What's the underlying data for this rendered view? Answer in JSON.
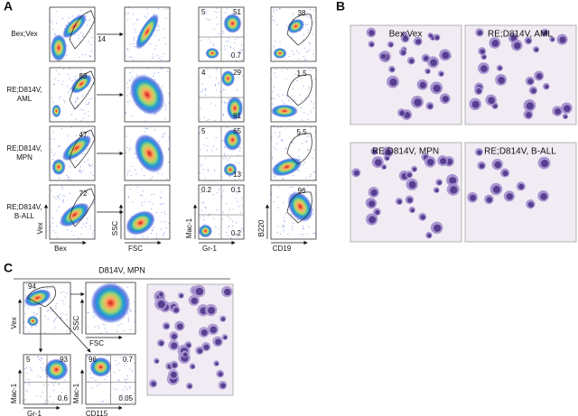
{
  "panel_a": {
    "label": "A",
    "rows": [
      {
        "name_lines": [
          "Bex;Vex"
        ],
        "gate": "14",
        "quadrants": [
          "5",
          "51",
          "0.7"
        ],
        "b_gate": "38"
      },
      {
        "name_lines": [
          "RE;D814V,",
          "AML"
        ],
        "gate": "88",
        "quadrants": [
          "4",
          "29",
          "61"
        ],
        "b_gate": "1.5"
      },
      {
        "name_lines": [
          "RE;D814V,",
          "MPN"
        ],
        "gate": "47",
        "quadrants": [
          "5",
          "65",
          "13"
        ],
        "b_gate": "5.5"
      },
      {
        "name_lines": [
          "RE;D814V,",
          "B-ALL"
        ],
        "gate": "72",
        "quadrants": [
          "0.2",
          "0.1",
          "0.2"
        ],
        "b_gate": "96"
      }
    ],
    "axes": [
      [
        "Vex",
        "Bex"
      ],
      [
        "SSC",
        "FSC"
      ],
      [
        "Mac-1",
        "Gr-1"
      ],
      [
        "B220",
        "CD19"
      ]
    ]
  },
  "panel_b": {
    "label": "B",
    "images": [
      "Bex;Vex",
      "RE;D814V, AML",
      "RE;D814V, MPN",
      "RE;D814V, B-ALL"
    ]
  },
  "panel_c": {
    "label": "C",
    "title": "D814V, MPN",
    "gate": "94",
    "axes": [
      [
        "Vex",
        null
      ],
      [
        "SSC",
        "FSC"
      ],
      [
        "Mac-1",
        "Gr-1"
      ],
      [
        "Mac-1",
        "CD115"
      ]
    ],
    "quad1": [
      "5",
      "93",
      "0.6"
    ],
    "quad2": [
      "96",
      "0.7",
      "0.05"
    ]
  }
}
